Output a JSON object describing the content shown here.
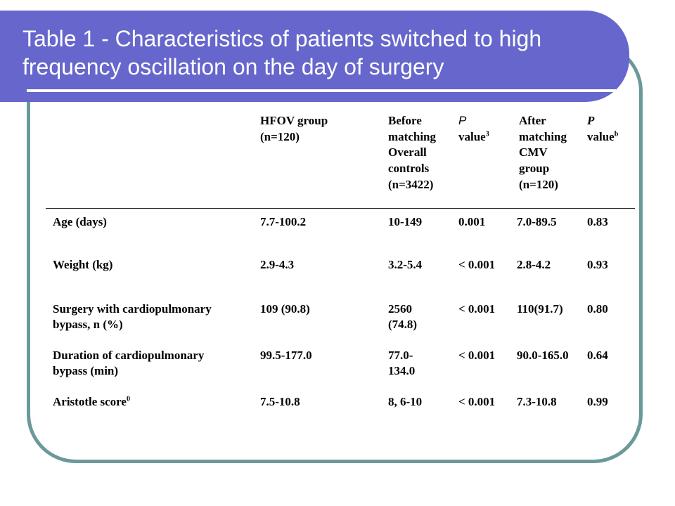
{
  "slide": {
    "title": "Table 1 - Characteristics of patients switched to high frequency oscillation on the day of surgery"
  },
  "colors": {
    "banner": "#6666cc",
    "frame": "#6b9999",
    "title_text": "#ffffff",
    "table_text": "#000000"
  },
  "table": {
    "headers": {
      "hfov": "HFOV group (n=120)",
      "overall_controls": "Before matching Overall controls (n=3422)",
      "p_value": {
        "p": "P",
        "word": "value",
        "sup": "3"
      },
      "cmv": "After matching CMV group (n=120)",
      "p_value_b": {
        "p": "P",
        "word": "value",
        "sup": "b"
      }
    },
    "rows": [
      {
        "label": "Age (days)",
        "hfov": "7.7-100.2",
        "overall_controls": "10-149",
        "p_value": "0.001",
        "cmv": "7.0-89.5",
        "p_value_b": "0.83"
      },
      {
        "label": "Weight (kg)",
        "hfov": "2.9-4.3",
        "overall_controls": "3.2-5.4",
        "p_value": "< 0.001",
        "cmv": "2.8-4.2",
        "p_value_b": "0.93"
      },
      {
        "label": "Surgery with cardiopulmonary bypass, n (%)",
        "hfov": "109 (90.8)",
        "overall_controls": "2560 (74.8)",
        "p_value": "< 0.001",
        "cmv": "110(91.7)",
        "p_value_b": "0.80"
      },
      {
        "label": "Duration of cardiopulmonary bypass (min)",
        "hfov": "99.5-177.0",
        "overall_controls": "77.0-134.0",
        "p_value": "< 0.001",
        "cmv": "90.0-165.0",
        "p_value_b": "0.64"
      },
      {
        "label": "Aristotle score",
        "label_sup": "0",
        "hfov": "7.5-10.8",
        "overall_controls": "8, 6-10",
        "p_value": "< 0.001",
        "cmv": "7.3-10.8",
        "p_value_b": "0.99"
      }
    ]
  }
}
